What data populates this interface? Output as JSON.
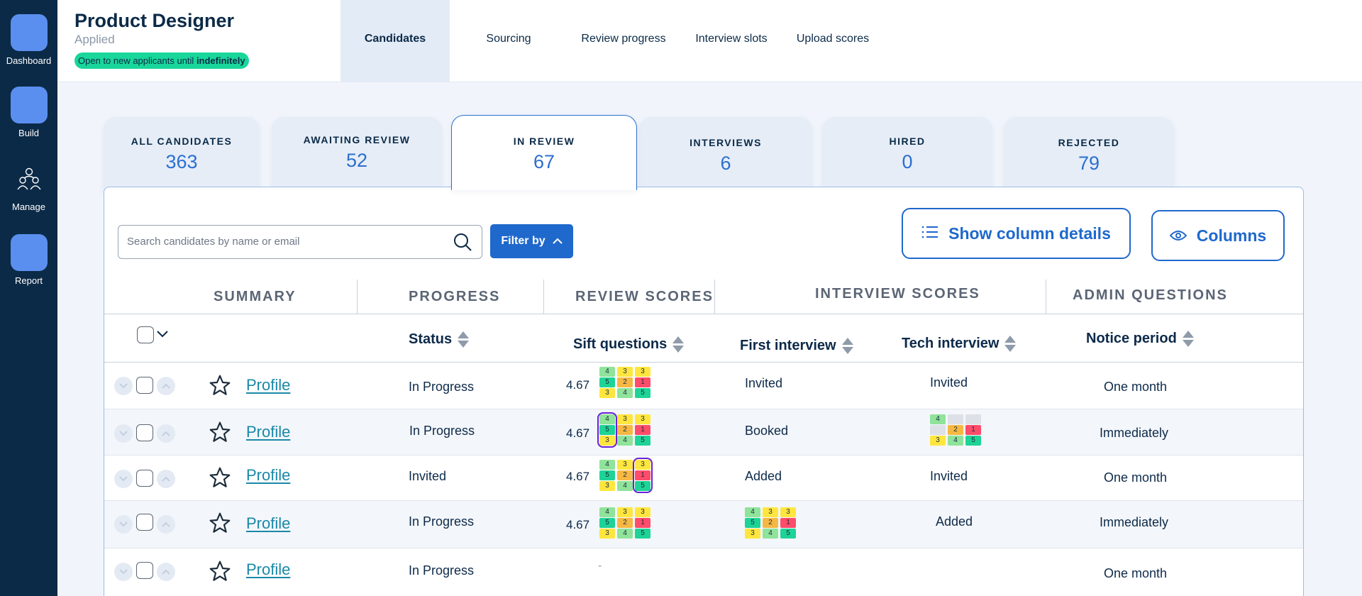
{
  "sidebar": {
    "items": [
      {
        "label": "Dashboard"
      },
      {
        "label": "Build"
      },
      {
        "label": "Manage"
      },
      {
        "label": "Report"
      }
    ]
  },
  "job": {
    "title": "Product Designer",
    "status": "Applied",
    "badge_prefix": "Open to new applicants until ",
    "badge_emph": "indefinitely"
  },
  "nav": {
    "tabs": [
      "Candidates",
      "Sourcing",
      "Review progress",
      "Interview slots",
      "Upload scores"
    ],
    "active": "Candidates"
  },
  "stats": [
    {
      "label": "ALL CANDIDATES",
      "value": "363"
    },
    {
      "label": "AWAITING REVIEW",
      "value": "52"
    },
    {
      "label": "IN REVIEW",
      "value": "67"
    },
    {
      "label": "INTERVIEWS",
      "value": "6"
    },
    {
      "label": "HIRED",
      "value": "0"
    },
    {
      "label": "REJECTED",
      "value": "79"
    }
  ],
  "active_stat": "IN REVIEW",
  "toolbar": {
    "search_placeholder": "Search candidates by name or email",
    "filter_label": "Filter by",
    "details_label": "Show column details",
    "columns_label": "Columns"
  },
  "groups": [
    "SUMMARY",
    "PROGRESS",
    "REVIEW SCORES",
    "INTERVIEW SCORES",
    "ADMIN QUESTIONS"
  ],
  "columns": {
    "status": "Status",
    "sift": "Sift questions",
    "first": "First interview",
    "tech": "Tech interview",
    "notice": "Notice period"
  },
  "colors": {
    "green": "#8fe39a",
    "teal": "#1ed396",
    "yellow": "#ffe63f",
    "orange": "#f6b843",
    "red": "#ff4c6a",
    "grey": "#dde1e7",
    "highlight": "#6b21d8"
  },
  "rows": [
    {
      "profile": "Profile",
      "status": "In Progress",
      "sift_score": "4.67",
      "sift_grid": [
        [
          {
            "v": "4",
            "c": "green"
          },
          {
            "v": "5",
            "c": "teal"
          },
          {
            "v": "3",
            "c": "yellow"
          }
        ],
        [
          {
            "v": "3",
            "c": "yellow"
          },
          {
            "v": "2",
            "c": "orange"
          },
          {
            "v": "4",
            "c": "green"
          }
        ],
        [
          {
            "v": "3",
            "c": "yellow"
          },
          {
            "v": "1",
            "c": "red"
          },
          {
            "v": "5",
            "c": "teal"
          }
        ]
      ],
      "sift_highlight": -1,
      "first": "Invited",
      "tech": "Invited",
      "notice": "One month"
    },
    {
      "profile": "Profile",
      "status": "In Progress",
      "sift_score": "4.67",
      "sift_grid": [
        [
          {
            "v": "4",
            "c": "green"
          },
          {
            "v": "5",
            "c": "teal"
          },
          {
            "v": "3",
            "c": "yellow"
          }
        ],
        [
          {
            "v": "3",
            "c": "yellow"
          },
          {
            "v": "2",
            "c": "orange"
          },
          {
            "v": "4",
            "c": "green"
          }
        ],
        [
          {
            "v": "3",
            "c": "yellow"
          },
          {
            "v": "1",
            "c": "red"
          },
          {
            "v": "5",
            "c": "teal"
          }
        ]
      ],
      "sift_highlight": 0,
      "first": "Booked",
      "tech_grid": [
        [
          {
            "v": "4",
            "c": "green"
          },
          {
            "v": "",
            "c": "grey"
          },
          {
            "v": "3",
            "c": "yellow"
          }
        ],
        [
          {
            "v": "",
            "c": "grey"
          },
          {
            "v": "2",
            "c": "orange"
          },
          {
            "v": "4",
            "c": "green"
          }
        ],
        [
          {
            "v": "",
            "c": "grey"
          },
          {
            "v": "1",
            "c": "red"
          },
          {
            "v": "5",
            "c": "teal"
          }
        ]
      ],
      "notice": "Immediately"
    },
    {
      "profile": "Profile",
      "status": "Invited",
      "sift_score": "4.67",
      "sift_grid": [
        [
          {
            "v": "4",
            "c": "green"
          },
          {
            "v": "5",
            "c": "teal"
          },
          {
            "v": "3",
            "c": "yellow"
          }
        ],
        [
          {
            "v": "3",
            "c": "yellow"
          },
          {
            "v": "2",
            "c": "orange"
          },
          {
            "v": "4",
            "c": "green"
          }
        ],
        [
          {
            "v": "3",
            "c": "yellow"
          },
          {
            "v": "1",
            "c": "red"
          },
          {
            "v": "5",
            "c": "teal"
          }
        ]
      ],
      "sift_highlight": 2,
      "first": "Added",
      "tech": "Invited",
      "notice": "One month"
    },
    {
      "profile": "Profile",
      "status": "In Progress",
      "sift_score": "4.67",
      "sift_grid": [
        [
          {
            "v": "4",
            "c": "green"
          },
          {
            "v": "5",
            "c": "teal"
          },
          {
            "v": "3",
            "c": "yellow"
          }
        ],
        [
          {
            "v": "3",
            "c": "yellow"
          },
          {
            "v": "2",
            "c": "orange"
          },
          {
            "v": "4",
            "c": "green"
          }
        ],
        [
          {
            "v": "3",
            "c": "yellow"
          },
          {
            "v": "1",
            "c": "red"
          },
          {
            "v": "5",
            "c": "teal"
          }
        ]
      ],
      "sift_highlight": -1,
      "first_grid": [
        [
          {
            "v": "4",
            "c": "green"
          },
          {
            "v": "5",
            "c": "teal"
          },
          {
            "v": "3",
            "c": "yellow"
          }
        ],
        [
          {
            "v": "3",
            "c": "yellow"
          },
          {
            "v": "2",
            "c": "orange"
          },
          {
            "v": "4",
            "c": "green"
          }
        ],
        [
          {
            "v": "3",
            "c": "yellow"
          },
          {
            "v": "1",
            "c": "red"
          },
          {
            "v": "5",
            "c": "teal"
          }
        ]
      ],
      "tech": "Added",
      "notice": "Immediately"
    },
    {
      "profile": "Profile",
      "status": "In Progress",
      "sift_empty": "-",
      "notice": "One month"
    }
  ]
}
